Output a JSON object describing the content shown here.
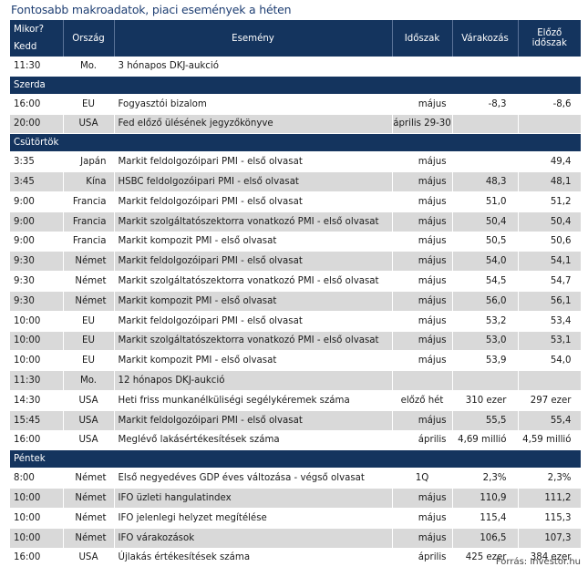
{
  "title": "Fontosabb makroadatok, piaci események a héten",
  "headers": {
    "when": "Mikor?",
    "day": "Kedd",
    "country": "Ország",
    "event": "Esemény",
    "period": "Időszak",
    "expectation": "Várakozás",
    "previous_1": "Előző",
    "previous_2": "időszak"
  },
  "rows": [
    {
      "time": "11:30",
      "country": "Mo.",
      "event": "3 hónapos DKJ-aukció",
      "period": "",
      "expect": "",
      "prev": ""
    },
    {
      "section": "Szerda"
    },
    {
      "time": "16:00",
      "country": "EU",
      "event": "Fogyasztói bizalom",
      "period": "május",
      "expect": "-8,3",
      "prev": "-8,6"
    },
    {
      "time": "20:00",
      "country": "USA",
      "event": "Fed előző ülésének jegyzőkönyve",
      "period": "április 29-30",
      "expect": "",
      "prev": ""
    },
    {
      "section": "Csütörtök"
    },
    {
      "time": "3:35",
      "country": "Japán",
      "event": "Markit feldolgozóipari PMI - első olvasat",
      "period": "május",
      "expect": "",
      "prev": "49,4"
    },
    {
      "time": "3:45",
      "country": "Kína",
      "event": "HSBC feldolgozóipari PMI - első olvasat",
      "period": "május",
      "expect": "48,3",
      "prev": "48,1"
    },
    {
      "time": "9:00",
      "country": "Francia",
      "event": "Markit feldolgozóipari PMI - első olvasat",
      "period": "május",
      "expect": "51,0",
      "prev": "51,2"
    },
    {
      "time": "9:00",
      "country": "Francia",
      "event": "Markit szolgáltatószektorra vonatkozó PMI - első olvasat",
      "period": "május",
      "expect": "50,4",
      "prev": "50,4"
    },
    {
      "time": "9:00",
      "country": "Francia",
      "event": "Markit kompozit PMI - első olvasat",
      "period": "május",
      "expect": "50,5",
      "prev": "50,6"
    },
    {
      "time": "9:30",
      "country": "Német",
      "event": "Markit feldolgozóipari PMI - első olvasat",
      "period": "május",
      "expect": "54,0",
      "prev": "54,1"
    },
    {
      "time": "9:30",
      "country": "Német",
      "event": "Markit szolgáltatószektorra vonatkozó PMI - első olvasat",
      "period": "május",
      "expect": "54,5",
      "prev": "54,7"
    },
    {
      "time": "9:30",
      "country": "Német",
      "event": "Markit kompozit PMI - első olvasat",
      "period": "május",
      "expect": "56,0",
      "prev": "56,1"
    },
    {
      "time": "10:00",
      "country": "EU",
      "event": "Markit feldolgozóipari PMI - első olvasat",
      "period": "május",
      "expect": "53,2",
      "prev": "53,4"
    },
    {
      "time": "10:00",
      "country": "EU",
      "event": "Markit szolgáltatószektorra vonatkozó PMI - első olvasat",
      "period": "május",
      "expect": "53,0",
      "prev": "53,1"
    },
    {
      "time": "10:00",
      "country": "EU",
      "event": "Markit kompozit PMI - első olvasat",
      "period": "május",
      "expect": "53,9",
      "prev": "54,0"
    },
    {
      "time": "11:30",
      "country": "Mo.",
      "event": "12 hónapos DKJ-aukció",
      "period": "",
      "expect": "",
      "prev": ""
    },
    {
      "time": "14:30",
      "country": "USA",
      "event": "Heti friss munkanélküliségi segélykéremek száma",
      "period": "előző hét",
      "expect": "310 ezer",
      "prev": "297 ezer"
    },
    {
      "time": "15:45",
      "country": "USA",
      "event": "Markit feldolgozóipari PMI - első olvasat",
      "period": "május",
      "expect": "55,5",
      "prev": "55,4"
    },
    {
      "time": "16:00",
      "country": "USA",
      "event": "Meglévő lakásértékesítések száma",
      "period": "április",
      "expect": "4,69 millió",
      "prev": "4,59 millió"
    },
    {
      "section": "Péntek"
    },
    {
      "time": "8:00",
      "country": "Német",
      "event": "Első negyedéves GDP éves változása - végső olvasat",
      "period": "1Q",
      "expect": "2,3%",
      "prev": "2,3%"
    },
    {
      "time": "10:00",
      "country": "Német",
      "event": "IFO üzleti hangulatindex",
      "period": "május",
      "expect": "110,9",
      "prev": "111,2"
    },
    {
      "time": "10:00",
      "country": "Német",
      "event": "IFO jelenlegi helyzet megítélése",
      "period": "május",
      "expect": "115,4",
      "prev": "115,3"
    },
    {
      "time": "10:00",
      "country": "Német",
      "event": "IFO várakozások",
      "period": "május",
      "expect": "106,5",
      "prev": "107,3"
    },
    {
      "time": "16:00",
      "country": "USA",
      "event": "Újlakás értékesítések száma",
      "period": "április",
      "expect": "425 ezer",
      "prev": "384 ezer"
    }
  ],
  "source": "Forrás: Investor.hu"
}
